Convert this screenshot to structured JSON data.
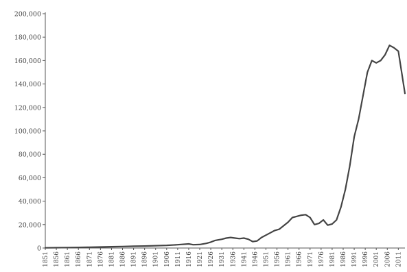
{
  "chart_data": {
    "type": "line",
    "title": "",
    "xlabel": "",
    "ylabel": "",
    "ylim": [
      0,
      200000
    ],
    "xlim": [
      1851,
      2014
    ],
    "grid": false,
    "y_ticks": [
      0,
      20000,
      40000,
      60000,
      80000,
      100000,
      120000,
      140000,
      160000,
      180000,
      200000
    ],
    "y_tick_labels": [
      "0",
      "20,000",
      "40,000",
      "60,000",
      "80,000",
      "100,000",
      "120,000",
      "140,000",
      "160,000",
      "180,000",
      "200,000"
    ],
    "x_ticks": [
      1851,
      1856,
      1861,
      1866,
      1871,
      1876,
      1881,
      1886,
      1891,
      1896,
      1901,
      1906,
      1911,
      1916,
      1921,
      1926,
      1931,
      1936,
      1941,
      1946,
      1951,
      1956,
      1961,
      1966,
      1971,
      1976,
      1981,
      1986,
      1991,
      1996,
      2001,
      2006,
      2011
    ],
    "x_tick_labels": [
      "1851",
      "1856",
      "1861",
      "1866",
      "1871",
      "1876",
      "1881",
      "1886",
      "1891",
      "1896",
      "1901",
      "1906",
      "1911",
      "1916",
      "1921",
      "1926",
      "1931",
      "1936",
      "1941",
      "1946",
      "1951",
      "1956",
      "1961",
      "1966",
      "1971",
      "1976",
      "1981",
      "1986",
      "1991",
      "1996",
      "2001",
      "2006",
      "2011"
    ],
    "series": [
      {
        "color": "#444444",
        "x": [
          1851,
          1856,
          1861,
          1866,
          1871,
          1876,
          1881,
          1886,
          1891,
          1896,
          1901,
          1906,
          1911,
          1914,
          1916,
          1918,
          1921,
          1924,
          1926,
          1928,
          1931,
          1933,
          1935,
          1937,
          1939,
          1941,
          1943,
          1945,
          1947,
          1949,
          1951,
          1953,
          1955,
          1957,
          1959,
          1961,
          1963,
          1965,
          1967,
          1969,
          1971,
          1973,
          1975,
          1977,
          1979,
          1981,
          1983,
          1985,
          1987,
          1989,
          1991,
          1993,
          1995,
          1997,
          1999,
          2001,
          2003,
          2005,
          2007,
          2009,
          2011,
          2014
        ],
        "y": [
          200,
          300,
          400,
          500,
          700,
          900,
          1100,
          1300,
          1500,
          1700,
          2000,
          2300,
          2800,
          3200,
          3500,
          2800,
          3000,
          4000,
          5000,
          6500,
          7500,
          8500,
          9000,
          8500,
          8000,
          8500,
          7500,
          5500,
          6000,
          9000,
          11000,
          13000,
          15000,
          16000,
          19000,
          22000,
          26000,
          27000,
          28000,
          28500,
          26000,
          20000,
          21000,
          24000,
          19500,
          20500,
          24000,
          35000,
          50000,
          70000,
          95000,
          110000,
          130000,
          150000,
          160000,
          158000,
          160000,
          165000,
          173000,
          171000,
          168000,
          132000
        ]
      }
    ]
  }
}
